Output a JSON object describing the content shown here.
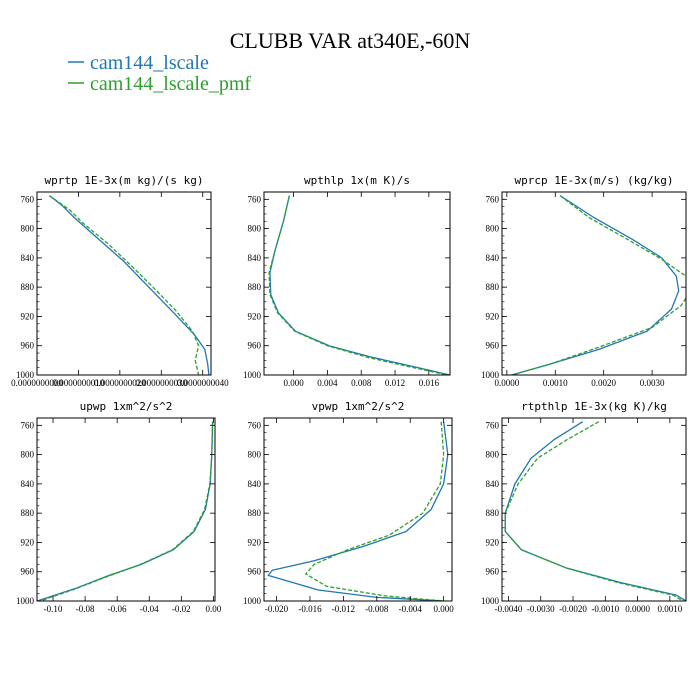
{
  "figure": {
    "title": "CLUBB VAR at340E,-60N"
  },
  "colors": {
    "cam144_lscale": "#1f77b4",
    "cam144_lscale_pmf": "#2ca02c"
  },
  "legend": [
    {
      "label": "cam144_lscale",
      "color": "#1f77b4",
      "dash": "solid"
    },
    {
      "label": "cam144_lscale_pmf",
      "color": "#2ca02c",
      "dash": "dashed"
    }
  ],
  "chart_data": [
    {
      "type": "line",
      "title": "wprtp  1E-3x(m kg)/(s kg)",
      "xlim": [
        0.0,
        4.2e-09
      ],
      "ylim": [
        1000,
        750
      ],
      "y_ticks": [
        "760",
        "800",
        "840",
        "880",
        "920",
        "960",
        "1000"
      ],
      "x_ticks": [
        {
          "v": 0.0,
          "label": "0.0000000000"
        },
        {
          "v": 2e-09,
          "label": "0.0000000020"
        },
        {
          "v": 4e-09,
          "label": "0.0000000040"
        }
      ],
      "x_ticks_extra": [
        {
          "v": 3e-09,
          "label": "0.0000000030"
        },
        {
          "v": 1e-09,
          "label": "0.0000000010"
        }
      ],
      "series": [
        {
          "name": "cam144_lscale",
          "points": [
            [
              3e-10,
              755
            ],
            [
              6e-10,
              768
            ],
            [
              9e-10,
              785
            ],
            [
              1.5e-09,
              815
            ],
            [
              2.1e-09,
              845
            ],
            [
              2.7e-09,
              880
            ],
            [
              3.3e-09,
              915
            ],
            [
              3.8e-09,
              945
            ],
            [
              4.05e-09,
              965
            ],
            [
              4.12e-09,
              985
            ],
            [
              4.15e-09,
              1000
            ]
          ]
        },
        {
          "name": "cam144_lscale_pmf",
          "points": [
            [
              3e-10,
              755
            ],
            [
              8e-10,
              775
            ],
            [
              1.1e-09,
              792
            ],
            [
              1.7e-09,
              820
            ],
            [
              2.3e-09,
              852
            ],
            [
              2.8e-09,
              880
            ],
            [
              3.35e-09,
              912
            ],
            [
              3.75e-09,
              940
            ],
            [
              3.9e-09,
              960
            ],
            [
              3.82e-09,
              980
            ],
            [
              3.9e-09,
              1000
            ]
          ]
        }
      ]
    },
    {
      "type": "line",
      "title": "wpthlp  1x(m K)/s",
      "xlim": [
        -0.0035,
        0.0185
      ],
      "ylim": [
        1000,
        750
      ],
      "y_ticks": [
        "760",
        "800",
        "840",
        "880",
        "920",
        "960",
        "1000"
      ],
      "x_ticks": [
        {
          "v": 0.0,
          "label": "0.000"
        },
        {
          "v": 0.004,
          "label": "0.004"
        },
        {
          "v": 0.008,
          "label": "0.008"
        },
        {
          "v": 0.012,
          "label": "0.012"
        },
        {
          "v": 0.016,
          "label": "0.016"
        }
      ],
      "series": [
        {
          "name": "cam144_lscale",
          "points": [
            [
              -0.0005,
              755
            ],
            [
              -0.0012,
              790
            ],
            [
              -0.0022,
              830
            ],
            [
              -0.0028,
              860
            ],
            [
              -0.0027,
              890
            ],
            [
              -0.0018,
              915
            ],
            [
              0.0002,
              940
            ],
            [
              0.0042,
              960
            ],
            [
              0.009,
              975
            ],
            [
              0.014,
              988
            ],
            [
              0.0185,
              1000
            ]
          ]
        },
        {
          "name": "cam144_lscale_pmf",
          "points": [
            [
              -0.0005,
              755
            ],
            [
              -0.0012,
              790
            ],
            [
              -0.0022,
              830
            ],
            [
              -0.0029,
              860
            ],
            [
              -0.0028,
              890
            ],
            [
              -0.0019,
              915
            ],
            [
              0.0001,
              940
            ],
            [
              0.004,
              960
            ],
            [
              0.0088,
              976
            ],
            [
              0.0138,
              989
            ],
            [
              0.0182,
              1000
            ]
          ]
        }
      ]
    },
    {
      "type": "line",
      "title": "wprcp  1E-3x(m/s) (kg/kg)",
      "xlim": [
        -0.0001,
        0.0037
      ],
      "ylim": [
        1000,
        750
      ],
      "y_ticks": [
        "760",
        "800",
        "840",
        "880",
        "920",
        "960",
        "1000"
      ],
      "x_ticks": [
        {
          "v": 0.0,
          "label": "0.0000"
        },
        {
          "v": 0.001,
          "label": "0.0010"
        },
        {
          "v": 0.002,
          "label": "0.0020"
        },
        {
          "v": 0.003,
          "label": "0.0030"
        }
      ],
      "series": [
        {
          "name": "cam144_lscale",
          "points": [
            [
              0.0011,
              755
            ],
            [
              0.0018,
              785
            ],
            [
              0.0026,
              815
            ],
            [
              0.0032,
              840
            ],
            [
              0.0035,
              865
            ],
            [
              0.00355,
              885
            ],
            [
              0.0034,
              910
            ],
            [
              0.0029,
              940
            ],
            [
              0.0019,
              965
            ],
            [
              0.0009,
              985
            ],
            [
              0.0001,
              1000
            ]
          ]
        },
        {
          "name": "cam144_lscale_pmf",
          "points": [
            [
              0.0011,
              755
            ],
            [
              0.0017,
              785
            ],
            [
              0.0025,
              815
            ],
            [
              0.0032,
              842
            ],
            [
              0.0037,
              865
            ],
            [
              0.0038,
              885
            ],
            [
              0.0036,
              905
            ],
            [
              0.003,
              935
            ],
            [
              0.0019,
              962
            ],
            [
              0.0009,
              985
            ],
            [
              0.0001,
              1000
            ]
          ]
        }
      ]
    },
    {
      "type": "line",
      "title": "upwp  1xm^2/s^2",
      "xlim": [
        -0.11,
        0.001
      ],
      "ylim": [
        1000,
        750
      ],
      "y_ticks": [
        "760",
        "800",
        "840",
        "880",
        "920",
        "960",
        "1000"
      ],
      "x_ticks": [
        {
          "v": -0.1,
          "label": "-0.10"
        },
        {
          "v": -0.08,
          "label": "-0.08"
        },
        {
          "v": -0.06,
          "label": "-0.06"
        },
        {
          "v": -0.04,
          "label": "-0.04"
        },
        {
          "v": -0.02,
          "label": "-0.02"
        },
        {
          "v": 0.0,
          "label": "0.00"
        }
      ],
      "series": [
        {
          "name": "cam144_lscale",
          "points": [
            [
              -0.0005,
              755
            ],
            [
              -0.001,
              800
            ],
            [
              -0.002,
              840
            ],
            [
              -0.005,
              875
            ],
            [
              -0.012,
              905
            ],
            [
              -0.025,
              930
            ],
            [
              -0.045,
              950
            ],
            [
              -0.065,
              965
            ],
            [
              -0.085,
              982
            ],
            [
              -0.11,
              1000
            ]
          ]
        },
        {
          "name": "cam144_lscale_pmf",
          "points": [
            [
              -0.0005,
              755
            ],
            [
              -0.001,
              800
            ],
            [
              -0.0022,
              840
            ],
            [
              -0.0055,
              875
            ],
            [
              -0.0125,
              905
            ],
            [
              -0.0255,
              930
            ],
            [
              -0.0455,
              950
            ],
            [
              -0.0655,
              966
            ],
            [
              -0.0855,
              983
            ],
            [
              -0.108,
              1000
            ]
          ]
        }
      ]
    },
    {
      "type": "line",
      "title": "vpwp  1xm^2/s^2",
      "xlim": [
        -0.0215,
        0.001
      ],
      "ylim": [
        1000,
        750
      ],
      "y_ticks": [
        "760",
        "800",
        "840",
        "880",
        "920",
        "960",
        "1000"
      ],
      "x_ticks": [
        {
          "v": -0.02,
          "label": "-0.020"
        },
        {
          "v": -0.016,
          "label": "-0.016"
        },
        {
          "v": -0.012,
          "label": "-0.012"
        },
        {
          "v": -0.008,
          "label": "-0.008"
        },
        {
          "v": -0.004,
          "label": "-0.004"
        },
        {
          "v": 0.0,
          "label": "0.000"
        }
      ],
      "series": [
        {
          "name": "cam144_lscale",
          "points": [
            [
              0.0,
              755
            ],
            [
              0.0005,
              800
            ],
            [
              0.0,
              840
            ],
            [
              -0.0015,
              875
            ],
            [
              -0.0045,
              905
            ],
            [
              -0.0095,
              925
            ],
            [
              -0.0155,
              945
            ],
            [
              -0.0205,
              958
            ],
            [
              -0.021,
              965
            ],
            [
              -0.015,
              985
            ],
            [
              -0.008,
              995
            ],
            [
              0.0,
              1000
            ]
          ]
        },
        {
          "name": "cam144_lscale_pmf",
          "points": [
            [
              -0.0003,
              755
            ],
            [
              0.0,
              800
            ],
            [
              -0.0004,
              840
            ],
            [
              -0.0025,
              880
            ],
            [
              -0.0065,
              910
            ],
            [
              -0.0115,
              930
            ],
            [
              -0.0155,
              950
            ],
            [
              -0.0165,
              963
            ],
            [
              -0.014,
              980
            ],
            [
              -0.007,
              993
            ],
            [
              0.0,
              1000
            ]
          ]
        }
      ]
    },
    {
      "type": "line",
      "title": "rtpthlp  1E-3x(kg K)/kg",
      "xlim": [
        -0.0042,
        0.0015
      ],
      "ylim": [
        1000,
        750
      ],
      "y_ticks": [
        "760",
        "800",
        "840",
        "880",
        "920",
        "960",
        "1000"
      ],
      "x_ticks": [
        {
          "v": -0.004,
          "label": "-0.0040"
        },
        {
          "v": -0.003,
          "label": "-0.0030"
        },
        {
          "v": -0.002,
          "label": "-0.0020"
        },
        {
          "v": -0.001,
          "label": "-0.0010"
        },
        {
          "v": 0.0,
          "label": "0.0000"
        },
        {
          "v": 0.001,
          "label": "0.0010"
        }
      ],
      "series": [
        {
          "name": "cam144_lscale",
          "points": [
            [
              -0.0017,
              755
            ],
            [
              -0.0026,
              780
            ],
            [
              -0.0033,
              805
            ],
            [
              -0.0038,
              840
            ],
            [
              -0.0041,
              880
            ],
            [
              -0.0041,
              905
            ],
            [
              -0.0036,
              930
            ],
            [
              -0.0022,
              955
            ],
            [
              -0.0005,
              975
            ],
            [
              0.0012,
              992
            ],
            [
              0.0015,
              1000
            ]
          ]
        },
        {
          "name": "cam144_lscale_pmf",
          "points": [
            [
              -0.0012,
              755
            ],
            [
              -0.0022,
              780
            ],
            [
              -0.0031,
              805
            ],
            [
              -0.0037,
              840
            ],
            [
              -0.0041,
              880
            ],
            [
              -0.0041,
              905
            ],
            [
              -0.0036,
              930
            ],
            [
              -0.0022,
              955
            ],
            [
              -0.0006,
              975
            ],
            [
              0.0011,
              992
            ],
            [
              0.0014,
              1000
            ]
          ]
        }
      ]
    }
  ]
}
